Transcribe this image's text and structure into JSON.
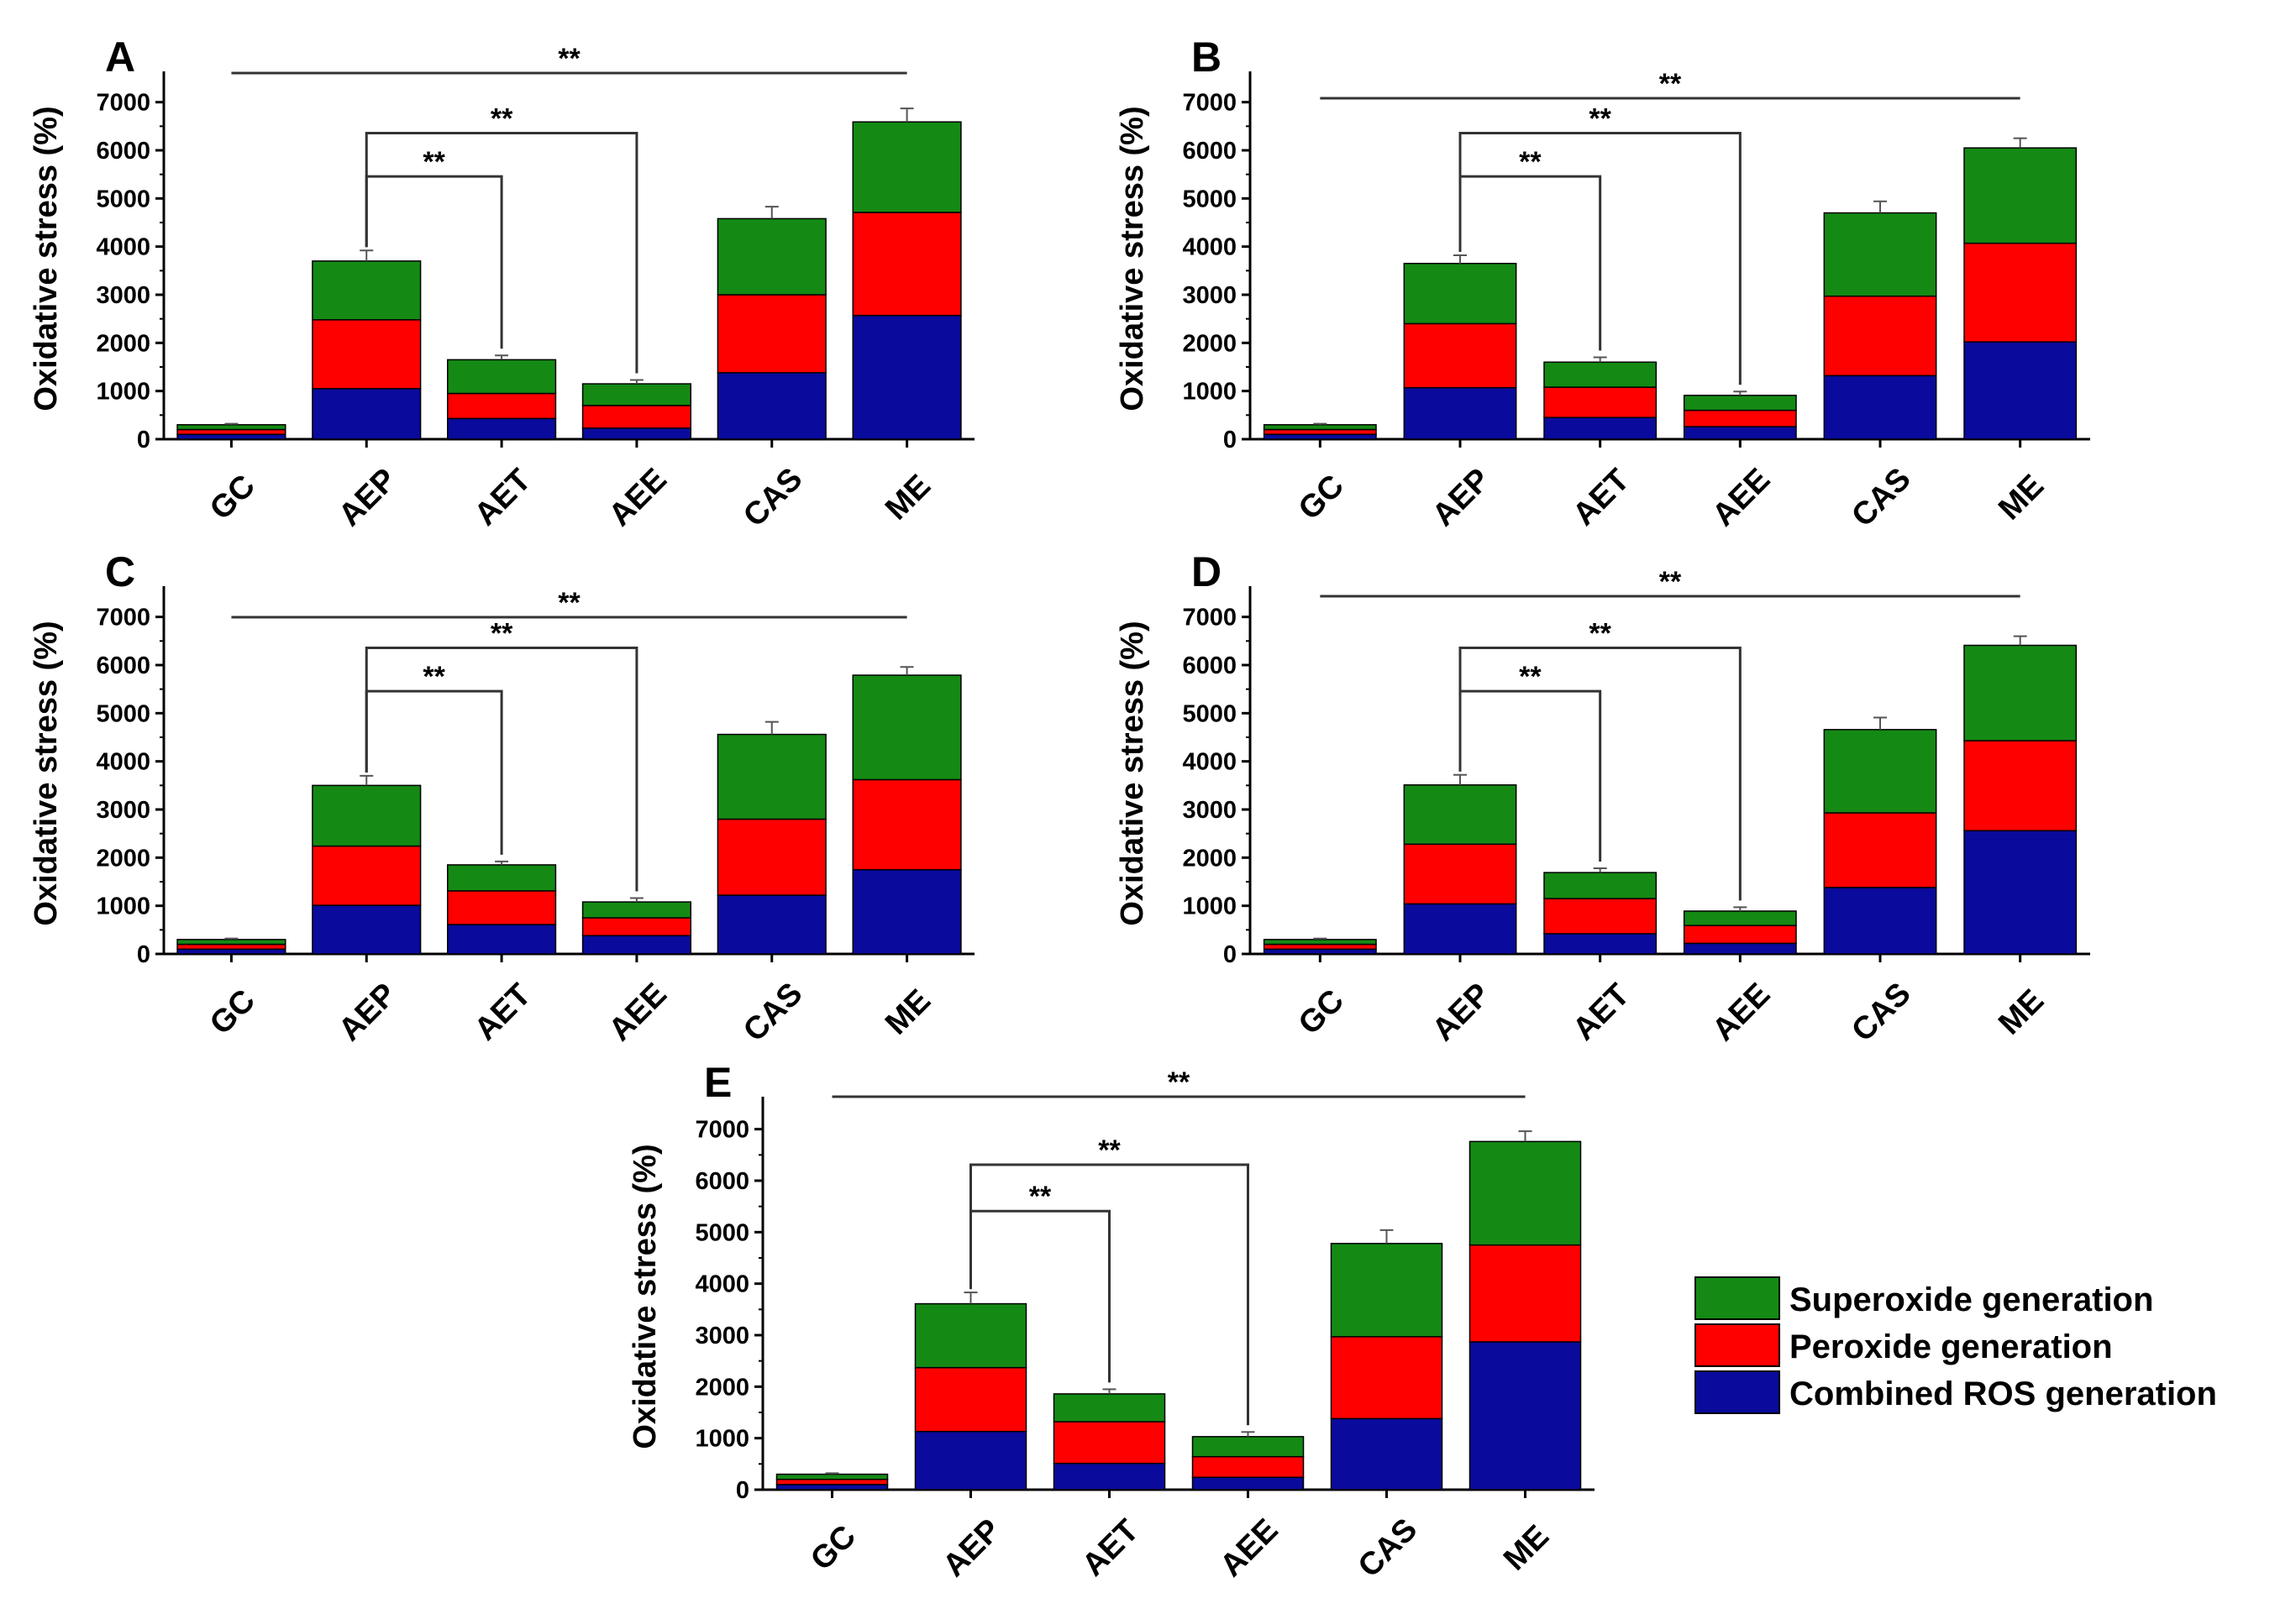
{
  "figure": {
    "y_axis_label": "Oxidative stress (%)",
    "categories": [
      "GC",
      "AEP",
      "AET",
      "AEE",
      "CAS",
      "ME"
    ],
    "y_ticks": [
      "0",
      "1000",
      "2000",
      "3000",
      "4000",
      "5000",
      "6000",
      "7000"
    ],
    "series_colors": {
      "Combined ROS generation": "#0a0a9c",
      "Peroxide generation": "#ff0000",
      "Superoxide generation": "#148a14"
    }
  },
  "legend": {
    "items": [
      {
        "label": "Superoxide generation",
        "color": "#148a14"
      },
      {
        "label": "Peroxide generation",
        "color": "#ff0000"
      },
      {
        "label": "Combined ROS generation",
        "color": "#0a0a9c"
      }
    ]
  },
  "chart_data": [
    {
      "panel": "A",
      "type": "bar",
      "stacked": true,
      "categories": [
        "GC",
        "AEP",
        "AET",
        "AEE",
        "CAS",
        "ME"
      ],
      "ylabel": "Oxidative stress (%)",
      "ylim": [
        0,
        7500
      ],
      "series": [
        {
          "name": "Combined ROS generation",
          "values": [
            100,
            1050,
            430,
            230,
            1380,
            2570
          ]
        },
        {
          "name": "Peroxide generation",
          "values": [
            100,
            1430,
            520,
            470,
            1620,
            2140
          ]
        },
        {
          "name": "Superoxide generation",
          "values": [
            100,
            1220,
            700,
            450,
            1580,
            1880
          ]
        }
      ],
      "errors": [
        20,
        220,
        90,
        80,
        250,
        280
      ],
      "significance": [
        {
          "from": "GC",
          "to": "ME",
          "label": "**"
        },
        {
          "from": "AEP",
          "to": "AEE",
          "label": "**"
        },
        {
          "from": "AEP",
          "to": "AET",
          "label": "**"
        }
      ]
    },
    {
      "panel": "B",
      "type": "bar",
      "stacked": true,
      "categories": [
        "GC",
        "AEP",
        "AET",
        "AEE",
        "CAS",
        "ME"
      ],
      "ylabel": "Oxidative stress (%)",
      "ylim": [
        0,
        7500
      ],
      "series": [
        {
          "name": "Combined ROS generation",
          "values": [
            100,
            1070,
            450,
            260,
            1320,
            2020
          ]
        },
        {
          "name": "Peroxide generation",
          "values": [
            100,
            1330,
            630,
            340,
            1650,
            2050
          ]
        },
        {
          "name": "Superoxide generation",
          "values": [
            100,
            1250,
            520,
            310,
            1730,
            1980
          ]
        }
      ],
      "errors": [
        20,
        170,
        100,
        80,
        240,
        200
      ],
      "significance": [
        {
          "from": "GC",
          "to": "ME",
          "label": "**"
        },
        {
          "from": "AEP",
          "to": "AEE",
          "label": "**"
        },
        {
          "from": "AEP",
          "to": "AET",
          "label": "**"
        }
      ]
    },
    {
      "panel": "C",
      "type": "bar",
      "stacked": true,
      "categories": [
        "GC",
        "AEP",
        "AET",
        "AEE",
        "CAS",
        "ME"
      ],
      "ylabel": "Oxidative stress (%)",
      "ylim": [
        0,
        7500
      ],
      "series": [
        {
          "name": "Combined ROS generation",
          "values": [
            100,
            1010,
            610,
            380,
            1220,
            1750
          ]
        },
        {
          "name": "Peroxide generation",
          "values": [
            100,
            1230,
            700,
            370,
            1580,
            1870
          ]
        },
        {
          "name": "Superoxide generation",
          "values": [
            100,
            1260,
            540,
            330,
            1760,
            2170
          ]
        }
      ],
      "errors": [
        20,
        200,
        70,
        80,
        260,
        170
      ],
      "significance": [
        {
          "from": "GC",
          "to": "ME",
          "label": "**"
        },
        {
          "from": "AEP",
          "to": "AEE",
          "label": "**"
        },
        {
          "from": "AEP",
          "to": "AET",
          "label": "**"
        }
      ]
    },
    {
      "panel": "D",
      "type": "bar",
      "stacked": true,
      "categories": [
        "GC",
        "AEP",
        "AET",
        "AEE",
        "CAS",
        "ME"
      ],
      "ylabel": "Oxidative stress (%)",
      "ylim": [
        0,
        7500
      ],
      "series": [
        {
          "name": "Combined ROS generation",
          "values": [
            100,
            1040,
            420,
            220,
            1380,
            2560
          ]
        },
        {
          "name": "Peroxide generation",
          "values": [
            100,
            1240,
            730,
            370,
            1550,
            1870
          ]
        },
        {
          "name": "Superoxide generation",
          "values": [
            100,
            1230,
            540,
            300,
            1730,
            1980
          ]
        }
      ],
      "errors": [
        20,
        210,
        90,
        80,
        250,
        190
      ],
      "significance": [
        {
          "from": "GC",
          "to": "ME",
          "label": "**"
        },
        {
          "from": "AEP",
          "to": "AEE",
          "label": "**"
        },
        {
          "from": "AEP",
          "to": "AET",
          "label": "**"
        }
      ]
    },
    {
      "panel": "E",
      "type": "bar",
      "stacked": true,
      "categories": [
        "GC",
        "AEP",
        "AET",
        "AEE",
        "CAS",
        "ME"
      ],
      "ylabel": "Oxidative stress (%)",
      "ylim": [
        0,
        7500
      ],
      "series": [
        {
          "name": "Combined ROS generation",
          "values": [
            100,
            1130,
            510,
            240,
            1380,
            2870
          ]
        },
        {
          "name": "Peroxide generation",
          "values": [
            100,
            1240,
            810,
            400,
            1590,
            1880
          ]
        },
        {
          "name": "Superoxide generation",
          "values": [
            100,
            1240,
            540,
            390,
            1810,
            2010
          ]
        }
      ],
      "errors": [
        20,
        220,
        90,
        90,
        260,
        200
      ],
      "significance": [
        {
          "from": "GC",
          "to": "ME",
          "label": "**"
        },
        {
          "from": "AEP",
          "to": "AEE",
          "label": "**"
        },
        {
          "from": "AEP",
          "to": "AET",
          "label": "**"
        }
      ]
    }
  ]
}
